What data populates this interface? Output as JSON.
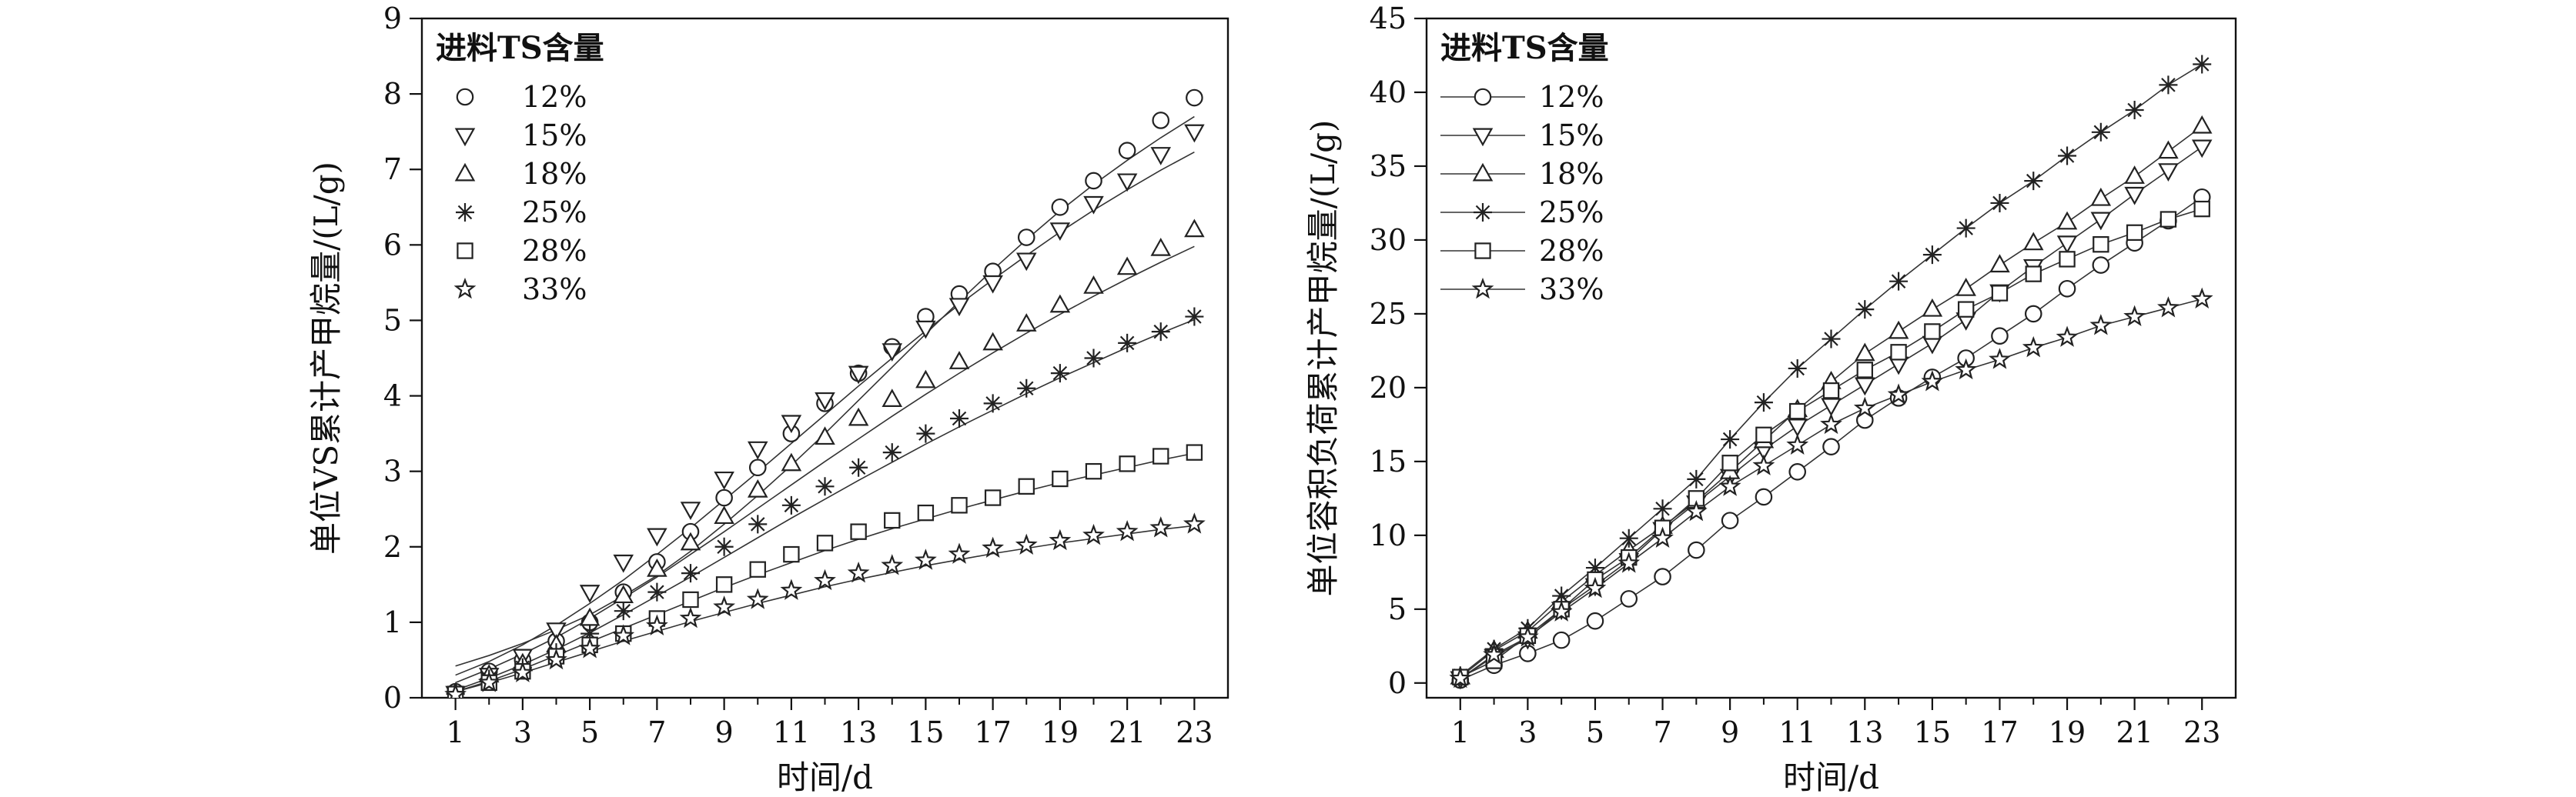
{
  "chart_data": [
    {
      "type": "scatter",
      "title": "",
      "xlabel": "时间/d",
      "ylabel": "单位VS累计产甲烷量/(L/g)",
      "xlim": [
        0,
        24
      ],
      "ylim": [
        0,
        9
      ],
      "xticks": [
        1,
        3,
        5,
        7,
        9,
        11,
        13,
        15,
        17,
        19,
        21,
        23
      ],
      "yticks": [
        0,
        1,
        2,
        3,
        4,
        5,
        6,
        7,
        8,
        9
      ],
      "legend_title": "进料TS含量",
      "legend_position": "top-left",
      "grid": false,
      "x": [
        1,
        2,
        3,
        4,
        5,
        6,
        7,
        8,
        9,
        10,
        11,
        12,
        13,
        14,
        15,
        16,
        17,
        18,
        19,
        20,
        21,
        22,
        23
      ],
      "series": [
        {
          "name": "12%",
          "marker": "circle",
          "values": [
            0.08,
            0.35,
            0.5,
            0.75,
            1.0,
            1.4,
            1.8,
            2.2,
            2.65,
            3.05,
            3.5,
            3.9,
            4.3,
            4.65,
            5.05,
            5.35,
            5.65,
            6.1,
            6.5,
            6.85,
            7.25,
            7.65,
            7.95
          ]
        },
        {
          "name": "15%",
          "marker": "triangle-down",
          "values": [
            0.06,
            0.3,
            0.55,
            0.9,
            1.4,
            1.8,
            2.15,
            2.5,
            2.9,
            3.3,
            3.65,
            3.95,
            4.3,
            4.6,
            4.9,
            5.2,
            5.5,
            5.8,
            6.2,
            6.55,
            6.85,
            7.2,
            7.5
          ]
        },
        {
          "name": "18%",
          "marker": "triangle-up",
          "values": [
            0.06,
            0.3,
            0.45,
            0.7,
            1.05,
            1.35,
            1.7,
            2.05,
            2.4,
            2.75,
            3.1,
            3.45,
            3.7,
            3.95,
            4.2,
            4.45,
            4.7,
            4.95,
            5.2,
            5.45,
            5.7,
            5.95,
            6.2
          ]
        },
        {
          "name": "25%",
          "marker": "asterisk",
          "values": [
            0.05,
            0.25,
            0.4,
            0.6,
            0.85,
            1.15,
            1.4,
            1.65,
            2.0,
            2.3,
            2.55,
            2.8,
            3.05,
            3.25,
            3.5,
            3.7,
            3.9,
            4.1,
            4.3,
            4.5,
            4.7,
            4.85,
            5.05
          ]
        },
        {
          "name": "28%",
          "marker": "square",
          "values": [
            0.05,
            0.2,
            0.35,
            0.55,
            0.7,
            0.85,
            1.05,
            1.3,
            1.5,
            1.7,
            1.9,
            2.05,
            2.2,
            2.35,
            2.45,
            2.55,
            2.65,
            2.8,
            2.9,
            3.0,
            3.1,
            3.2,
            3.25
          ]
        },
        {
          "name": "33%",
          "marker": "star",
          "values": [
            0.04,
            0.2,
            0.33,
            0.5,
            0.65,
            0.82,
            0.95,
            1.05,
            1.2,
            1.3,
            1.42,
            1.55,
            1.65,
            1.75,
            1.82,
            1.9,
            1.98,
            2.02,
            2.08,
            2.15,
            2.2,
            2.25,
            2.3
          ]
        }
      ],
      "fits": [
        {
          "name": "12%",
          "values": [
            0.42,
            0.56,
            0.72,
            0.9,
            1.1,
            1.35,
            1.62,
            1.94,
            2.3,
            2.68,
            3.08,
            3.5,
            3.94,
            4.38,
            4.82,
            5.25,
            5.67,
            6.07,
            6.45,
            6.8,
            7.12,
            7.42,
            7.7
          ]
        },
        {
          "name": "15%",
          "values": [
            0.3,
            0.48,
            0.7,
            0.96,
            1.25,
            1.56,
            1.9,
            2.25,
            2.62,
            2.99,
            3.37,
            3.75,
            4.13,
            4.5,
            4.86,
            5.21,
            5.54,
            5.86,
            6.17,
            6.46,
            6.73,
            6.99,
            7.23
          ]
        },
        {
          "name": "18%",
          "values": [
            0.2,
            0.38,
            0.58,
            0.8,
            1.05,
            1.32,
            1.6,
            1.9,
            2.2,
            2.51,
            2.82,
            3.13,
            3.43,
            3.73,
            4.02,
            4.3,
            4.57,
            4.83,
            5.08,
            5.32,
            5.55,
            5.77,
            5.98
          ]
        },
        {
          "name": "25%",
          "values": [
            0.1,
            0.26,
            0.44,
            0.64,
            0.86,
            1.1,
            1.35,
            1.6,
            1.86,
            2.12,
            2.38,
            2.63,
            2.88,
            3.12,
            3.36,
            3.59,
            3.81,
            4.03,
            4.24,
            4.44,
            4.64,
            4.83,
            5.01
          ]
        },
        {
          "name": "28%",
          "values": [
            0.08,
            0.22,
            0.38,
            0.56,
            0.74,
            0.92,
            1.1,
            1.28,
            1.46,
            1.63,
            1.79,
            1.95,
            2.1,
            2.24,
            2.37,
            2.5,
            2.62,
            2.74,
            2.85,
            2.95,
            3.05,
            3.15,
            3.24
          ]
        },
        {
          "name": "33%",
          "values": [
            0.08,
            0.2,
            0.33,
            0.47,
            0.61,
            0.75,
            0.88,
            1.01,
            1.13,
            1.25,
            1.36,
            1.47,
            1.57,
            1.66,
            1.75,
            1.83,
            1.91,
            1.98,
            2.05,
            2.11,
            2.17,
            2.23,
            2.28
          ]
        }
      ]
    },
    {
      "type": "line",
      "title": "",
      "xlabel": "时间/d",
      "ylabel": "单位容积负荷累计产甲烷量/(L/g)",
      "xlim": [
        0,
        24
      ],
      "ylim": [
        -1,
        45
      ],
      "xticks": [
        1,
        3,
        5,
        7,
        9,
        11,
        13,
        15,
        17,
        19,
        21,
        23
      ],
      "yticks": [
        0,
        5,
        10,
        15,
        20,
        25,
        30,
        35,
        40,
        45
      ],
      "legend_title": "进料TS含量",
      "legend_position": "top-left",
      "grid": false,
      "x": [
        1,
        2,
        3,
        4,
        5,
        6,
        7,
        8,
        9,
        10,
        11,
        12,
        13,
        14,
        15,
        16,
        17,
        18,
        19,
        20,
        21,
        22,
        23
      ],
      "series": [
        {
          "name": "12%",
          "marker": "circle",
          "values": [
            0.2,
            1.2,
            2.0,
            2.9,
            4.2,
            5.7,
            7.2,
            9.0,
            11.0,
            12.6,
            14.3,
            16.0,
            17.8,
            19.3,
            20.7,
            22.0,
            23.5,
            25.0,
            26.7,
            28.3,
            29.8,
            31.3,
            32.9
          ]
        },
        {
          "name": "15%",
          "marker": "triangle-down",
          "values": [
            0.3,
            1.8,
            3.0,
            5.0,
            6.6,
            8.3,
            10.4,
            12.2,
            14.0,
            15.8,
            17.4,
            18.8,
            20.2,
            21.6,
            23.0,
            24.6,
            26.5,
            28.2,
            29.8,
            31.4,
            33.1,
            34.7,
            36.3
          ]
        },
        {
          "name": "18%",
          "marker": "triangle-up",
          "values": [
            0.4,
            2.2,
            3.5,
            5.5,
            7.3,
            9.0,
            10.6,
            12.3,
            14.3,
            16.4,
            18.5,
            20.4,
            22.3,
            23.8,
            25.3,
            26.7,
            28.3,
            29.8,
            31.2,
            32.8,
            34.3,
            36.0,
            37.7
          ]
        },
        {
          "name": "25%",
          "marker": "asterisk",
          "values": [
            0.5,
            2.3,
            3.7,
            5.9,
            7.8,
            9.8,
            11.8,
            13.8,
            16.5,
            19.0,
            21.3,
            23.3,
            25.3,
            27.2,
            29.0,
            30.8,
            32.5,
            34.0,
            35.7,
            37.3,
            38.8,
            40.5,
            41.9
          ]
        },
        {
          "name": "28%",
          "marker": "square",
          "values": [
            0.4,
            1.5,
            3.2,
            5.0,
            7.0,
            8.5,
            10.5,
            12.5,
            14.9,
            16.8,
            18.4,
            19.8,
            21.2,
            22.4,
            23.8,
            25.3,
            26.4,
            27.7,
            28.7,
            29.7,
            30.5,
            31.4,
            32.1
          ]
        },
        {
          "name": "33%",
          "marker": "star",
          "values": [
            0.3,
            1.9,
            3.1,
            4.8,
            6.4,
            8.1,
            9.8,
            11.6,
            13.3,
            14.7,
            16.1,
            17.5,
            18.6,
            19.5,
            20.4,
            21.2,
            21.9,
            22.7,
            23.4,
            24.2,
            24.8,
            25.4,
            26.0
          ]
        }
      ]
    }
  ]
}
